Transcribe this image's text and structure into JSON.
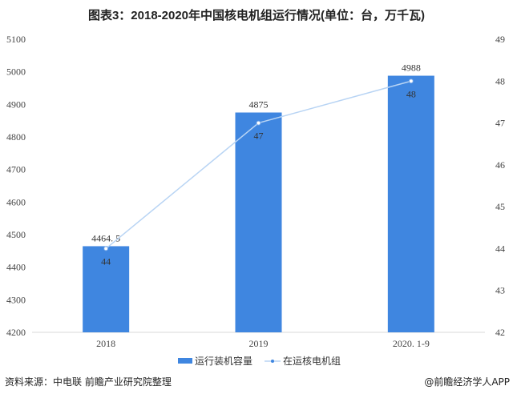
{
  "chart_data": {
    "type": "bar+line",
    "title": "图表3：2018-2020年中国核电机组运行情况(单位：台，万千瓦)",
    "categories": [
      "2018",
      "2019",
      "2020. 1-9"
    ],
    "series": [
      {
        "name": "运行装机容量",
        "type": "bar",
        "axis": "left",
        "values": [
          4464.5,
          4875,
          4988
        ],
        "labels": [
          "4464. 5",
          "4875",
          "4988"
        ],
        "color": "#3f86e0"
      },
      {
        "name": "在运核电机组",
        "type": "line",
        "axis": "right",
        "values": [
          44,
          47,
          48
        ],
        "labels": [
          "44",
          "47",
          "48"
        ],
        "color": "#b8d4f4"
      }
    ],
    "y_left": {
      "range": [
        4200,
        5100
      ],
      "ticks": [
        "4200",
        "4300",
        "4400",
        "4500",
        "4600",
        "4700",
        "4800",
        "4900",
        "5000",
        "5100"
      ]
    },
    "y_right": {
      "range": [
        42,
        49
      ],
      "ticks": [
        "42",
        "43",
        "44",
        "45",
        "46",
        "47",
        "48",
        "49"
      ]
    },
    "grid": false,
    "legend": "bottom"
  },
  "footer": {
    "source": "资料来源：中电联 前瞻产业研究院整理",
    "credit": "@前瞻经济学人APP"
  }
}
